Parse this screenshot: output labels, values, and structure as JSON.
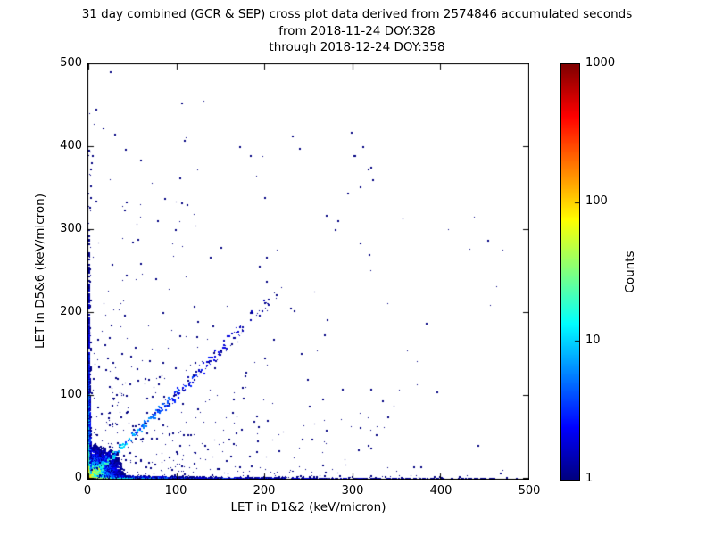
{
  "figure": {
    "title_line1": "31 day combined (GCR & SEP) cross plot data derived from 2574846 accumulated seconds",
    "title_line2": "from 2018-11-24 DOY:328",
    "title_line3": "through 2018-12-24 DOY:358"
  },
  "chart_data": {
    "type": "scatter",
    "title": "31 day combined (GCR & SEP) cross plot data derived from 2574846 accumulated seconds from 2018-11-24 DOY:328 through 2018-12-24 DOY:358",
    "xlabel": "LET in D1&2 (keV/micron)",
    "ylabel": "LET in D5&6 (keV/micron)",
    "xlim": [
      0,
      500
    ],
    "ylim": [
      0,
      500
    ],
    "x_ticks": [
      0,
      100,
      200,
      300,
      400,
      500
    ],
    "y_ticks": [
      0,
      100,
      200,
      300,
      400,
      500
    ],
    "grid": false,
    "background": "#ffffff",
    "point_color_low": "#000080",
    "point_color_high": "#800000",
    "colorbar": {
      "label": "Counts",
      "scale": "log",
      "min": 1,
      "max": 1000,
      "ticks": [
        1000,
        100,
        10,
        1
      ],
      "colormap": "jet"
    },
    "density_components": [
      {
        "kind": "corner_blob",
        "center": [
          0,
          0
        ],
        "extent": 80,
        "amplitudes": [
          900,
          25,
          3,
          0.35
        ],
        "decays": [
          3.5,
          9,
          18,
          38
        ]
      },
      {
        "kind": "horizontal_band",
        "y_rows": [
          0,
          1,
          2,
          3
        ],
        "row_factors": [
          1,
          0.45,
          0.18,
          0.07
        ],
        "x_max": 488,
        "amplitudes": [
          500,
          60,
          6,
          1.3
        ],
        "decays": [
          6,
          25,
          90,
          500
        ],
        "tail_prob": 0.5,
        "tail_decay": 260,
        "fuzz_prob": 0.3,
        "fuzz_decay": 150,
        "fuzz_height": 10
      },
      {
        "kind": "vertical_band",
        "x_cols": [
          0,
          1,
          2
        ],
        "col_factors": [
          1,
          0.3,
          0.1
        ],
        "y_max": 455,
        "amplitudes": [
          260,
          30,
          6,
          0.9
        ],
        "decays": [
          5,
          22,
          80,
          300
        ],
        "tail_prob": 0.35,
        "tail_decay": 260
      },
      {
        "kind": "diagonal_band",
        "slope": 1.03,
        "length": 310,
        "sigma0": 4,
        "sigma_growth": 0.05,
        "amplitudes": [
          45,
          9,
          1.6
        ],
        "decays": [
          10,
          50,
          150
        ]
      },
      {
        "kind": "origin_streak",
        "slope": 1.33,
        "length": 32,
        "sigma": 1.3,
        "amplitude": 150,
        "decay": 6.5
      },
      {
        "kind": "background_scatter",
        "n_exp": 430,
        "x_scale": 110,
        "y_scale": 105,
        "n_uniform": 45,
        "x_max": 485,
        "y_max": 455
      }
    ],
    "notable_points": [
      [
        16,
        423
      ],
      [
        109,
        407
      ],
      [
        298,
        417
      ],
      [
        239,
        398
      ],
      [
        184,
        389
      ],
      [
        301,
        389
      ],
      [
        311,
        400
      ],
      [
        302,
        389
      ],
      [
        323,
        360
      ],
      [
        308,
        352
      ],
      [
        294,
        344
      ],
      [
        270,
        317
      ],
      [
        280,
        300
      ],
      [
        318,
        270
      ],
      [
        308,
        284
      ],
      [
        86,
        338
      ],
      [
        105,
        332
      ],
      [
        112,
        330
      ],
      [
        43,
        333
      ],
      [
        78,
        311
      ],
      [
        150,
        279
      ],
      [
        194,
        256
      ],
      [
        98,
        300
      ],
      [
        396,
        104
      ],
      [
        320,
        107
      ],
      [
        308,
        61
      ],
      [
        4,
        389
      ],
      [
        3,
        381
      ],
      [
        2,
        373
      ]
    ]
  }
}
